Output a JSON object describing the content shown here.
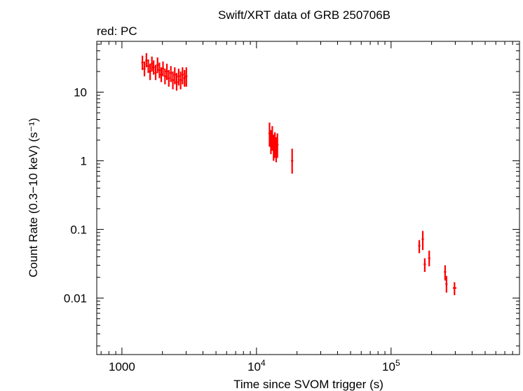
{
  "chart_data": {
    "type": "scatter",
    "title": "Swift/XRT data of GRB 250706B",
    "subtitle": "red: PC",
    "xlabel": "Time since SVOM trigger (s)",
    "ylabel": "Count Rate (0.3−10 keV) (s⁻¹)",
    "xscale": "log",
    "yscale": "log",
    "xlim": [
      650,
      900000
    ],
    "ylim": [
      0.0015,
      55
    ],
    "x_tick_labels": [
      {
        "value": 1000,
        "label": "1000"
      },
      {
        "value": 10000,
        "base": "10",
        "exp": "4"
      },
      {
        "value": 100000,
        "base": "10",
        "exp": "5"
      }
    ],
    "y_tick_labels": [
      {
        "value": 0.01,
        "label": "0.01"
      },
      {
        "value": 0.1,
        "label": "0.1"
      },
      {
        "value": 1,
        "label": "1"
      },
      {
        "value": 10,
        "label": "10"
      }
    ],
    "grid": false,
    "series": [
      {
        "name": "PC",
        "color": "#ff0000",
        "points": [
          {
            "x": 1420,
            "y": 27,
            "ylo": 21,
            "yhi": 34
          },
          {
            "x": 1470,
            "y": 22,
            "ylo": 17,
            "yhi": 28
          },
          {
            "x": 1520,
            "y": 29,
            "ylo": 23,
            "yhi": 37
          },
          {
            "x": 1570,
            "y": 24,
            "ylo": 19,
            "yhi": 30
          },
          {
            "x": 1620,
            "y": 20,
            "ylo": 15,
            "yhi": 26
          },
          {
            "x": 1670,
            "y": 26,
            "ylo": 20,
            "yhi": 33
          },
          {
            "x": 1720,
            "y": 23,
            "ylo": 18,
            "yhi": 29
          },
          {
            "x": 1780,
            "y": 19,
            "ylo": 15,
            "yhi": 25
          },
          {
            "x": 1840,
            "y": 25,
            "ylo": 19,
            "yhi": 32
          },
          {
            "x": 1900,
            "y": 21,
            "ylo": 16,
            "yhi": 27
          },
          {
            "x": 1960,
            "y": 18,
            "ylo": 14,
            "yhi": 23
          },
          {
            "x": 2020,
            "y": 22,
            "ylo": 17,
            "yhi": 28
          },
          {
            "x": 2090,
            "y": 17,
            "ylo": 13,
            "yhi": 22
          },
          {
            "x": 2160,
            "y": 20,
            "ylo": 15,
            "yhi": 26
          },
          {
            "x": 2230,
            "y": 16,
            "ylo": 12,
            "yhi": 21
          },
          {
            "x": 2310,
            "y": 19,
            "ylo": 14,
            "yhi": 24
          },
          {
            "x": 2390,
            "y": 15,
            "ylo": 11,
            "yhi": 20
          },
          {
            "x": 2470,
            "y": 18,
            "ylo": 13,
            "yhi": 23
          },
          {
            "x": 2550,
            "y": 14,
            "ylo": 10.5,
            "yhi": 19
          },
          {
            "x": 2640,
            "y": 17,
            "ylo": 12.5,
            "yhi": 22
          },
          {
            "x": 2730,
            "y": 15,
            "ylo": 11,
            "yhi": 20
          },
          {
            "x": 2820,
            "y": 18,
            "ylo": 13,
            "yhi": 23
          },
          {
            "x": 2920,
            "y": 16,
            "ylo": 12,
            "yhi": 21
          },
          {
            "x": 3010,
            "y": 17,
            "ylo": 12,
            "yhi": 23
          },
          {
            "x": 12500,
            "y": 2.5,
            "ylo": 1.6,
            "yhi": 3.6
          },
          {
            "x": 12800,
            "y": 1.9,
            "ylo": 1.25,
            "yhi": 2.8
          },
          {
            "x": 13100,
            "y": 2.2,
            "ylo": 1.4,
            "yhi": 3.2
          },
          {
            "x": 13400,
            "y": 1.6,
            "ylo": 1.0,
            "yhi": 2.4
          },
          {
            "x": 13700,
            "y": 1.8,
            "ylo": 1.1,
            "yhi": 2.6
          },
          {
            "x": 14000,
            "y": 1.5,
            "ylo": 0.95,
            "yhi": 2.2
          },
          {
            "x": 14300,
            "y": 1.7,
            "ylo": 1.1,
            "yhi": 2.5
          },
          {
            "x": 18400,
            "y": 1.0,
            "ylo": 0.65,
            "yhi": 1.5
          },
          {
            "x": 162000,
            "y": 0.058,
            "ylo": 0.045,
            "yhi": 0.07
          },
          {
            "x": 172000,
            "y": 0.072,
            "ylo": 0.05,
            "yhi": 0.095
          },
          {
            "x": 178000,
            "y": 0.031,
            "ylo": 0.024,
            "yhi": 0.038
          },
          {
            "x": 192000,
            "y": 0.038,
            "ylo": 0.029,
            "yhi": 0.049
          },
          {
            "x": 252000,
            "y": 0.024,
            "ylo": 0.018,
            "yhi": 0.03
          },
          {
            "x": 258000,
            "y": 0.016,
            "ylo": 0.012,
            "yhi": 0.021
          },
          {
            "x": 296000,
            "y": 0.014,
            "ylo": 0.011,
            "yhi": 0.017,
            "xlo": 288000,
            "xhi": 306000
          }
        ]
      }
    ]
  }
}
